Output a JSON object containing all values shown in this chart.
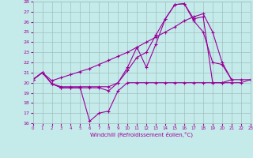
{
  "xlabel": "Windchill (Refroidissement éolien,°C)",
  "background_color": "#c5eaea",
  "grid_color": "#9fbfbf",
  "line_color": "#990099",
  "xlim": [
    0,
    23
  ],
  "ylim": [
    16,
    28
  ],
  "xticks": [
    0,
    1,
    2,
    3,
    4,
    5,
    6,
    7,
    8,
    9,
    10,
    11,
    12,
    13,
    14,
    15,
    16,
    17,
    18,
    19,
    20,
    21,
    22,
    23
  ],
  "yticks": [
    16,
    17,
    18,
    19,
    20,
    21,
    22,
    23,
    24,
    25,
    26,
    27,
    28
  ],
  "series": [
    {
      "x": [
        0,
        1,
        2,
        3,
        4,
        5,
        6,
        7,
        8,
        9,
        10,
        11,
        12,
        13,
        14,
        15,
        16,
        17,
        18,
        19,
        20,
        21,
        22,
        23
      ],
      "y": [
        20.3,
        21.0,
        19.9,
        19.5,
        19.5,
        19.5,
        16.2,
        17.0,
        17.2,
        19.2,
        20.0,
        20.0,
        20.0,
        20.0,
        20.0,
        20.0,
        20.0,
        20.0,
        20.0,
        20.0,
        20.0,
        20.0,
        20.0,
        20.3
      ]
    },
    {
      "x": [
        0,
        1,
        2,
        3,
        4,
        5,
        6,
        7,
        8,
        9,
        10,
        11,
        12,
        13,
        14,
        15,
        16,
        17,
        18,
        19,
        20,
        21
      ],
      "y": [
        20.3,
        21.0,
        19.9,
        19.5,
        19.5,
        19.5,
        19.5,
        19.5,
        19.2,
        20.0,
        21.5,
        23.5,
        21.5,
        23.8,
        26.3,
        27.7,
        27.8,
        26.1,
        25.0,
        22.0,
        21.8,
        20.3
      ]
    },
    {
      "x": [
        0,
        1,
        2,
        3,
        4,
        5,
        6,
        7,
        8,
        9,
        10,
        11,
        12,
        13,
        14,
        15,
        16,
        17,
        18,
        19,
        20,
        21,
        22,
        23
      ],
      "y": [
        20.3,
        21.0,
        19.9,
        19.6,
        19.6,
        19.6,
        19.6,
        19.6,
        19.6,
        20.0,
        21.2,
        22.5,
        23.0,
        24.7,
        26.3,
        27.7,
        27.8,
        26.3,
        26.5,
        20.0,
        20.0,
        20.3,
        20.3,
        20.3
      ]
    },
    {
      "x": [
        0,
        1,
        2,
        3,
        4,
        5,
        6,
        7,
        8,
        9,
        10,
        11,
        12,
        13,
        14,
        15,
        16,
        17,
        18,
        19,
        20,
        21
      ],
      "y": [
        20.3,
        21.0,
        20.2,
        20.5,
        20.8,
        21.1,
        21.4,
        21.8,
        22.2,
        22.6,
        23.0,
        23.5,
        24.0,
        24.5,
        25.0,
        25.5,
        26.1,
        26.5,
        26.8,
        25.0,
        22.0,
        20.3
      ]
    }
  ]
}
